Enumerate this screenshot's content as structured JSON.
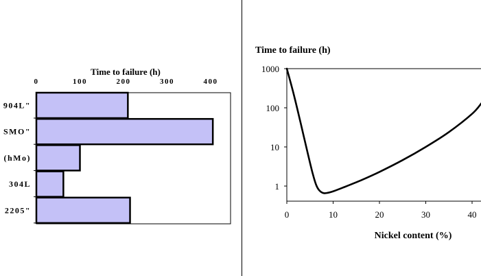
{
  "chart_data": [
    {
      "type": "bar",
      "orientation": "horizontal",
      "title": "Time to failure (h)",
      "categories": [
        "904L\"",
        "SMO\"",
        "(hMo)",
        "304L",
        "2205\""
      ],
      "values": [
        210,
        405,
        100,
        62,
        215
      ],
      "xlim": [
        0,
        450
      ],
      "xticks": [
        0,
        100,
        200,
        300,
        400
      ],
      "colors": {
        "bar_fill": "#c4c1f7",
        "bar_stroke": "#000000"
      }
    },
    {
      "type": "line",
      "title": "Time to failure (h)",
      "xlabel": "Nickel content (%)",
      "ylabel": "",
      "yscale": "log",
      "xlim": [
        0,
        42
      ],
      "ylim": [
        0.45,
        1000
      ],
      "xticks": [
        0,
        10,
        20,
        30,
        40
      ],
      "yticks": [
        1,
        10,
        100,
        1000
      ],
      "series": [
        {
          "x": [
            0,
            1.5,
            3,
            4.5,
            5.5,
            6.3,
            7,
            8,
            9.5,
            12,
            16,
            20,
            25,
            30,
            35,
            40,
            42
          ],
          "y": [
            1000,
            220,
            40,
            7,
            2.3,
            1.1,
            0.78,
            0.66,
            0.7,
            0.9,
            1.4,
            2.3,
            4.6,
            10,
            24,
            70,
            130
          ],
          "color": "#000000"
        }
      ]
    }
  ]
}
